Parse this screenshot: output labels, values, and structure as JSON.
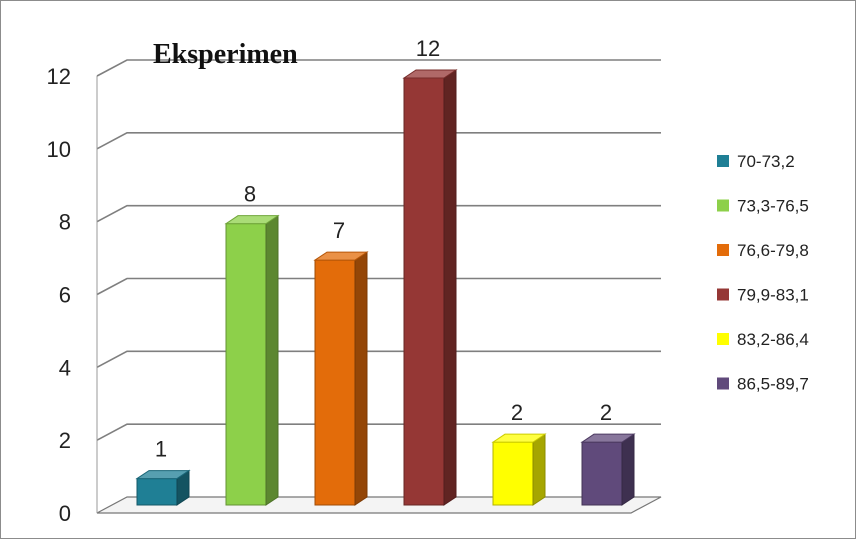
{
  "chart_data": {
    "type": "bar",
    "title": "Eksperimen",
    "categories": [
      "70-73,2",
      "73,3-76,5",
      "76,6-79,8",
      "79,9-83,1",
      "83,2-86,4",
      "86,5-89,7"
    ],
    "values": [
      1,
      8,
      7,
      12,
      2,
      2
    ],
    "colors": [
      "#1f7f95",
      "#8dd04a",
      "#e36c0a",
      "#953735",
      "#ffff00",
      "#604a7b"
    ],
    "ylim": [
      0,
      12
    ],
    "yticks": [
      "0",
      "2",
      "4",
      "6",
      "8",
      "10",
      "12"
    ],
    "grid": true,
    "legend": "right",
    "data_labels": true,
    "style": "3d-column"
  }
}
